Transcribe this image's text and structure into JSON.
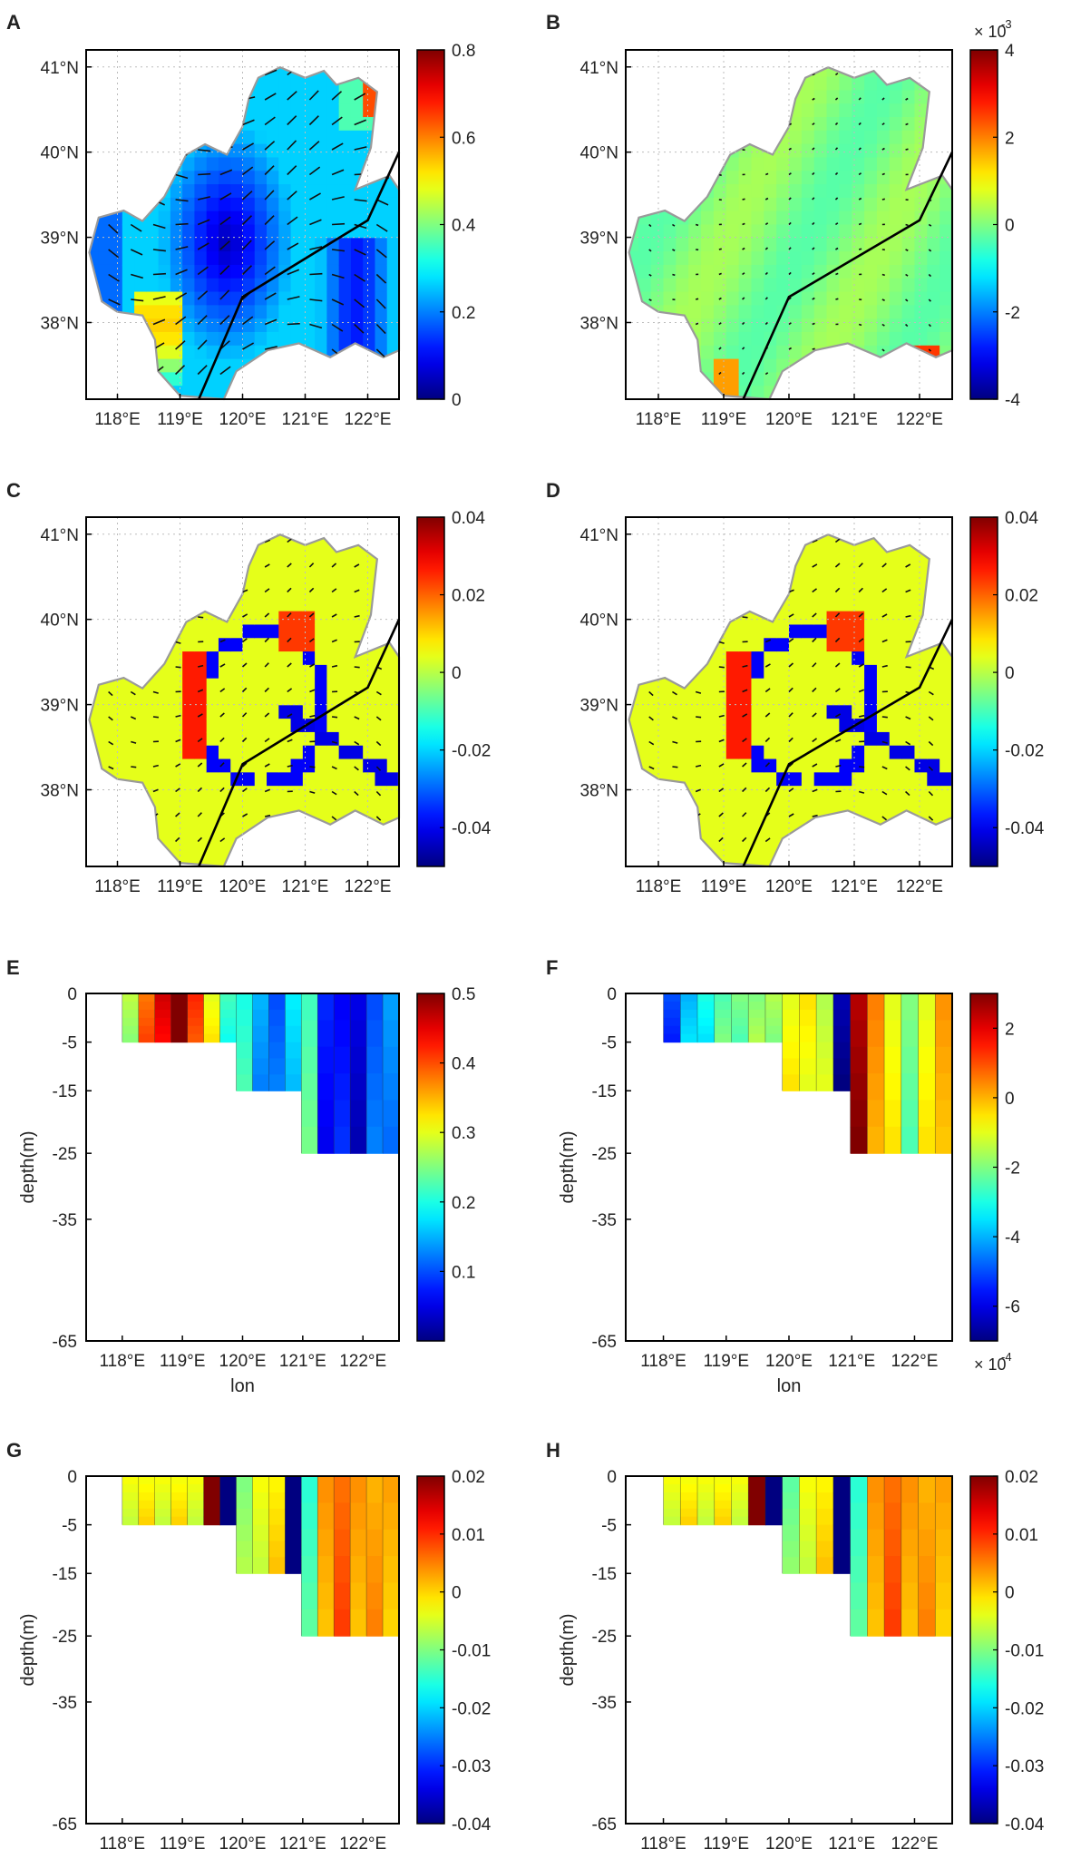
{
  "figure": {
    "panels": [
      "A",
      "B",
      "C",
      "D",
      "E",
      "F",
      "G",
      "H"
    ]
  },
  "colors": {
    "land": "#ffffff",
    "coast": "#9a9a9a",
    "grid": "#bdbdbd",
    "section_line": "#000000",
    "contour_line": "#2a2a2a"
  },
  "chart_data": [
    {
      "panel": "A",
      "type": "heatmap",
      "kind": "map",
      "x_ticks": [
        "118°E",
        "119°E",
        "120°E",
        "121°E",
        "122°E"
      ],
      "y_ticks": [
        "41°N",
        "40°N",
        "39°N",
        "38°N"
      ],
      "xlim": [
        117.5,
        122.5
      ],
      "ylim": [
        37.1,
        41.2
      ],
      "colorbar": {
        "ticks": [
          "0.8",
          "0.6",
          "0.4",
          "0.2",
          "0"
        ],
        "clim": [
          0,
          0.8
        ],
        "exponent": ""
      },
      "pattern": "speed",
      "section_line": [
        [
          119.3,
          37.1
        ],
        [
          120.0,
          38.3
        ],
        [
          122.0,
          39.2
        ],
        [
          122.5,
          40.0
        ]
      ]
    },
    {
      "panel": "B",
      "type": "heatmap",
      "kind": "map",
      "x_ticks": [
        "118°E",
        "119°E",
        "120°E",
        "121°E",
        "122°E"
      ],
      "y_ticks": [
        "41°N",
        "40°N",
        "39°N",
        "38°N"
      ],
      "xlim": [
        117.5,
        122.5
      ],
      "ylim": [
        37.1,
        41.2
      ],
      "colorbar": {
        "ticks": [
          "4",
          "2",
          "0",
          "-2",
          "-4"
        ],
        "clim": [
          -4,
          4
        ],
        "exponent": "× 10",
        "exponent_power": "-3"
      },
      "pattern": "flat",
      "section_line": [
        [
          119.3,
          37.1
        ],
        [
          120.0,
          38.3
        ],
        [
          122.0,
          39.2
        ],
        [
          122.5,
          40.0
        ]
      ]
    },
    {
      "panel": "C",
      "type": "heatmap",
      "kind": "map",
      "x_ticks": [
        "118°E",
        "119°E",
        "120°E",
        "121°E",
        "122°E"
      ],
      "y_ticks": [
        "41°N",
        "40°N",
        "39°N",
        "38°N"
      ],
      "xlim": [
        117.5,
        122.5
      ],
      "ylim": [
        37.1,
        41.2
      ],
      "colorbar": {
        "ticks": [
          "0.04",
          "0.02",
          "0",
          "-0.02",
          "-0.04"
        ],
        "clim": [
          -0.05,
          0.04
        ],
        "exponent": ""
      },
      "pattern": "front",
      "section_line": [
        [
          119.3,
          37.1
        ],
        [
          120.0,
          38.3
        ],
        [
          122.0,
          39.2
        ],
        [
          122.5,
          40.0
        ]
      ]
    },
    {
      "panel": "D",
      "type": "heatmap",
      "kind": "map",
      "x_ticks": [
        "118°E",
        "119°E",
        "120°E",
        "121°E",
        "122°E"
      ],
      "y_ticks": [
        "41°N",
        "40°N",
        "39°N",
        "38°N"
      ],
      "xlim": [
        117.5,
        122.5
      ],
      "ylim": [
        37.1,
        41.2
      ],
      "colorbar": {
        "ticks": [
          "0.04",
          "0.02",
          "0",
          "-0.02",
          "-0.04"
        ],
        "clim": [
          -0.05,
          0.04
        ],
        "exponent": ""
      },
      "pattern": "front",
      "section_line": [
        [
          119.3,
          37.1
        ],
        [
          120.0,
          38.3
        ],
        [
          122.0,
          39.2
        ],
        [
          122.5,
          40.0
        ]
      ]
    },
    {
      "panel": "E",
      "type": "heatmap",
      "kind": "section",
      "x_ticks": [
        "118°E",
        "119°E",
        "120°E",
        "121°E",
        "122°E"
      ],
      "y_ticks": [
        "0",
        "-5",
        "-15",
        "-25",
        "-35",
        "-65"
      ],
      "xlabel": "lon",
      "ylabel": "depth(m)",
      "colorbar": {
        "ticks": [
          "0.5",
          "0.4",
          "0.3",
          "0.2",
          "0.1"
        ],
        "clim": [
          0,
          0.5
        ],
        "exponent": ""
      },
      "segments": [
        {
          "lon": [
            118.0,
            119.8
          ],
          "depth": -5
        },
        {
          "lon": [
            119.8,
            120.9
          ],
          "depth": -15
        },
        {
          "lon": [
            120.9,
            122.6
          ],
          "depth": -25
        }
      ],
      "columns": [
        0.28,
        0.38,
        0.46,
        0.5,
        0.42,
        0.3,
        0.22,
        0.2,
        0.15,
        0.1,
        0.18,
        0.22,
        0.08,
        0.06,
        0.05,
        0.1,
        0.14
      ]
    },
    {
      "panel": "F",
      "type": "heatmap",
      "kind": "section",
      "x_ticks": [
        "118°E",
        "119°E",
        "120°E",
        "121°E",
        "122°E"
      ],
      "y_ticks": [
        "0",
        "-5",
        "-15",
        "-25",
        "-35",
        "-65"
      ],
      "xlabel": "lon",
      "ylabel": "depth(m)",
      "colorbar": {
        "ticks": [
          "2",
          "0",
          "-2",
          "-4",
          "-6"
        ],
        "clim": [
          -7,
          3
        ],
        "exponent": "× 10",
        "exponent_power": "-4"
      },
      "segments": [
        {
          "lon": [
            118.0,
            119.8
          ],
          "depth": -5
        },
        {
          "lon": [
            119.8,
            120.9
          ],
          "depth": -15
        },
        {
          "lon": [
            120.9,
            122.6
          ],
          "depth": -25
        }
      ],
      "columns": [
        -5,
        -4,
        -3,
        -2.5,
        -2,
        -2,
        -1.5,
        -1,
        -0.5,
        -1.5,
        -6.5,
        2.5,
        0.5,
        -1,
        -2,
        -1,
        0.3
      ]
    },
    {
      "panel": "G",
      "type": "heatmap",
      "kind": "section",
      "x_ticks": [
        "118°E",
        "119°E",
        "120°E",
        "121°E",
        "122°E"
      ],
      "y_ticks": [
        "0",
        "-5",
        "-15",
        "-25",
        "-35",
        "-65"
      ],
      "xlabel": "lon",
      "ylabel": "depth(m)",
      "colorbar": {
        "ticks": [
          "0.02",
          "0.01",
          "0",
          "-0.01",
          "-0.02",
          "-0.03",
          "-0.04"
        ],
        "clim": [
          -0.04,
          0.02
        ],
        "exponent": ""
      },
      "segments": [
        {
          "lon": [
            118.0,
            119.8
          ],
          "depth": -5
        },
        {
          "lon": [
            119.8,
            120.9
          ],
          "depth": -15
        },
        {
          "lon": [
            120.9,
            122.6
          ],
          "depth": -25
        }
      ],
      "columns": [
        -0.003,
        -0.003,
        -0.003,
        -0.003,
        -0.003,
        0.02,
        -0.04,
        -0.01,
        -0.003,
        -0.002,
        -0.04,
        -0.015,
        0.004,
        0.006,
        0.004,
        0.002,
        0.003
      ]
    },
    {
      "panel": "H",
      "type": "heatmap",
      "kind": "section",
      "x_ticks": [
        "118°E",
        "119°E",
        "120°E",
        "121°E",
        "122°E"
      ],
      "y_ticks": [
        "0",
        "-5",
        "-15",
        "-25",
        "-35",
        "-65"
      ],
      "xlabel": "lon",
      "ylabel": "depth(m)",
      "colorbar": {
        "ticks": [
          "0.02",
          "0.01",
          "0",
          "-0.01",
          "-0.02",
          "-0.03",
          "-0.04"
        ],
        "clim": [
          -0.04,
          0.02
        ],
        "exponent": ""
      },
      "segments": [
        {
          "lon": [
            118.0,
            119.8
          ],
          "depth": -5
        },
        {
          "lon": [
            119.8,
            120.9
          ],
          "depth": -15
        },
        {
          "lon": [
            120.9,
            122.6
          ],
          "depth": -25
        }
      ],
      "columns": [
        -0.003,
        -0.003,
        -0.003,
        -0.003,
        -0.003,
        0.02,
        -0.04,
        -0.012,
        -0.003,
        -0.002,
        -0.04,
        -0.015,
        0.004,
        0.006,
        0.004,
        0.002,
        0.003
      ]
    }
  ]
}
